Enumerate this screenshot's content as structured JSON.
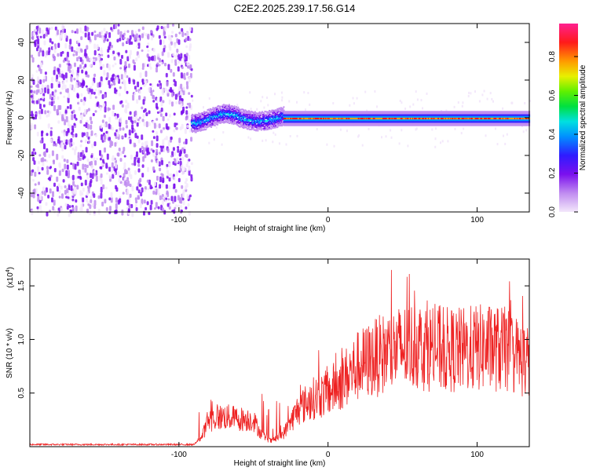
{
  "title": "C2E2.2025.239.17.56.G14",
  "chart_data": [
    {
      "type": "heatmap",
      "xlabel": "Height of straight line (km)",
      "ylabel": "Frequency (Hz)",
      "xlim": [
        -200,
        135
      ],
      "ylim": [
        -50,
        50
      ],
      "xticks": [
        -100,
        0,
        100
      ],
      "yticks": [
        -40,
        -20,
        0,
        20,
        40
      ],
      "colorbar": {
        "label": "Normalized spectral amplitude",
        "range": [
          0,
          0.97
        ],
        "ticks": [
          0.0,
          0.2,
          0.4,
          0.6,
          0.8
        ]
      },
      "description_regions": [
        {
          "x_range": [
            -200,
            -92
          ],
          "pattern": "broadband noise",
          "amplitude": 0.15
        },
        {
          "x_range": [
            -92,
            -30
          ],
          "pattern": "narrow band wavering near 0 Hz",
          "amplitude": 0.45
        },
        {
          "x_range": [
            -30,
            135
          ],
          "pattern": "stable line at 0 Hz",
          "amplitude": 0.9
        }
      ]
    },
    {
      "type": "line",
      "xlabel": "Height of straight line (km)",
      "ylabel": "SNR (10 * v/v)",
      "y_multiplier_label": "(x10",
      "y_multiplier_exp": "4",
      "y_multiplier_close": ")",
      "xlim": [
        -200,
        135
      ],
      "ylim": [
        0,
        1.75
      ],
      "xticks": [
        -100,
        0,
        100
      ],
      "yticks": [
        0.5,
        1.0,
        1.5
      ],
      "ytick_labels": [
        "0.5",
        "1.0",
        "1.5"
      ],
      "series": [
        {
          "name": "SNR",
          "color": "#ee2222",
          "envelope_points": [
            [
              -200,
              0.02
            ],
            [
              -90,
              0.02
            ],
            [
              -85,
              0.08
            ],
            [
              -80,
              0.25
            ],
            [
              -70,
              0.28
            ],
            [
              -60,
              0.26
            ],
            [
              -50,
              0.25
            ],
            [
              -45,
              0.12
            ],
            [
              -38,
              0.05
            ],
            [
              -30,
              0.12
            ],
            [
              -20,
              0.35
            ],
            [
              -10,
              0.45
            ],
            [
              0,
              0.5
            ],
            [
              10,
              0.62
            ],
            [
              20,
              0.75
            ],
            [
              30,
              0.82
            ],
            [
              40,
              0.88
            ],
            [
              50,
              0.92
            ],
            [
              60,
              0.95
            ],
            [
              70,
              0.92
            ],
            [
              80,
              0.9
            ],
            [
              90,
              0.9
            ],
            [
              100,
              0.92
            ],
            [
              110,
              0.92
            ],
            [
              120,
              0.9
            ],
            [
              130,
              0.82
            ],
            [
              135,
              0.8
            ]
          ]
        }
      ]
    }
  ]
}
